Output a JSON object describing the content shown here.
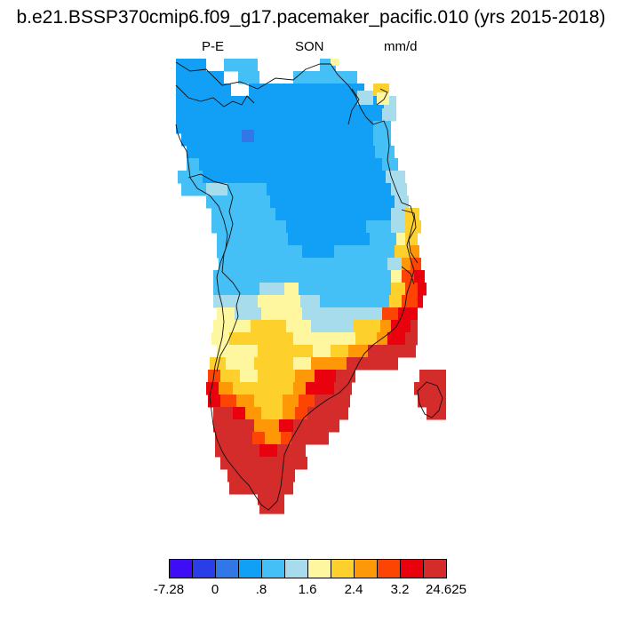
{
  "title": "b.e21.BSSP370cmip6.f09_g17.pacemaker_pacific.010 (yrs 2015-2018)",
  "left_label": "P-E",
  "center_label": "SON",
  "right_label": "mm/d",
  "colorbar": {
    "colors": [
      "#3e0cf5",
      "#2a3ee8",
      "#3277e8",
      "#12a0f7",
      "#45c0f7",
      "#a6dcec",
      "#fff7a0",
      "#fed02b",
      "#fe9806",
      "#fd4403",
      "#e9020e",
      "#d42b2b"
    ],
    "labels": [
      "-7.28",
      "0",
      ".8",
      "1.6",
      "2.4",
      "3.2",
      "24.625"
    ]
  },
  "map": {
    "region": "Greenland",
    "variable": "P-E",
    "season": "SON",
    "units": "mm/d"
  }
}
